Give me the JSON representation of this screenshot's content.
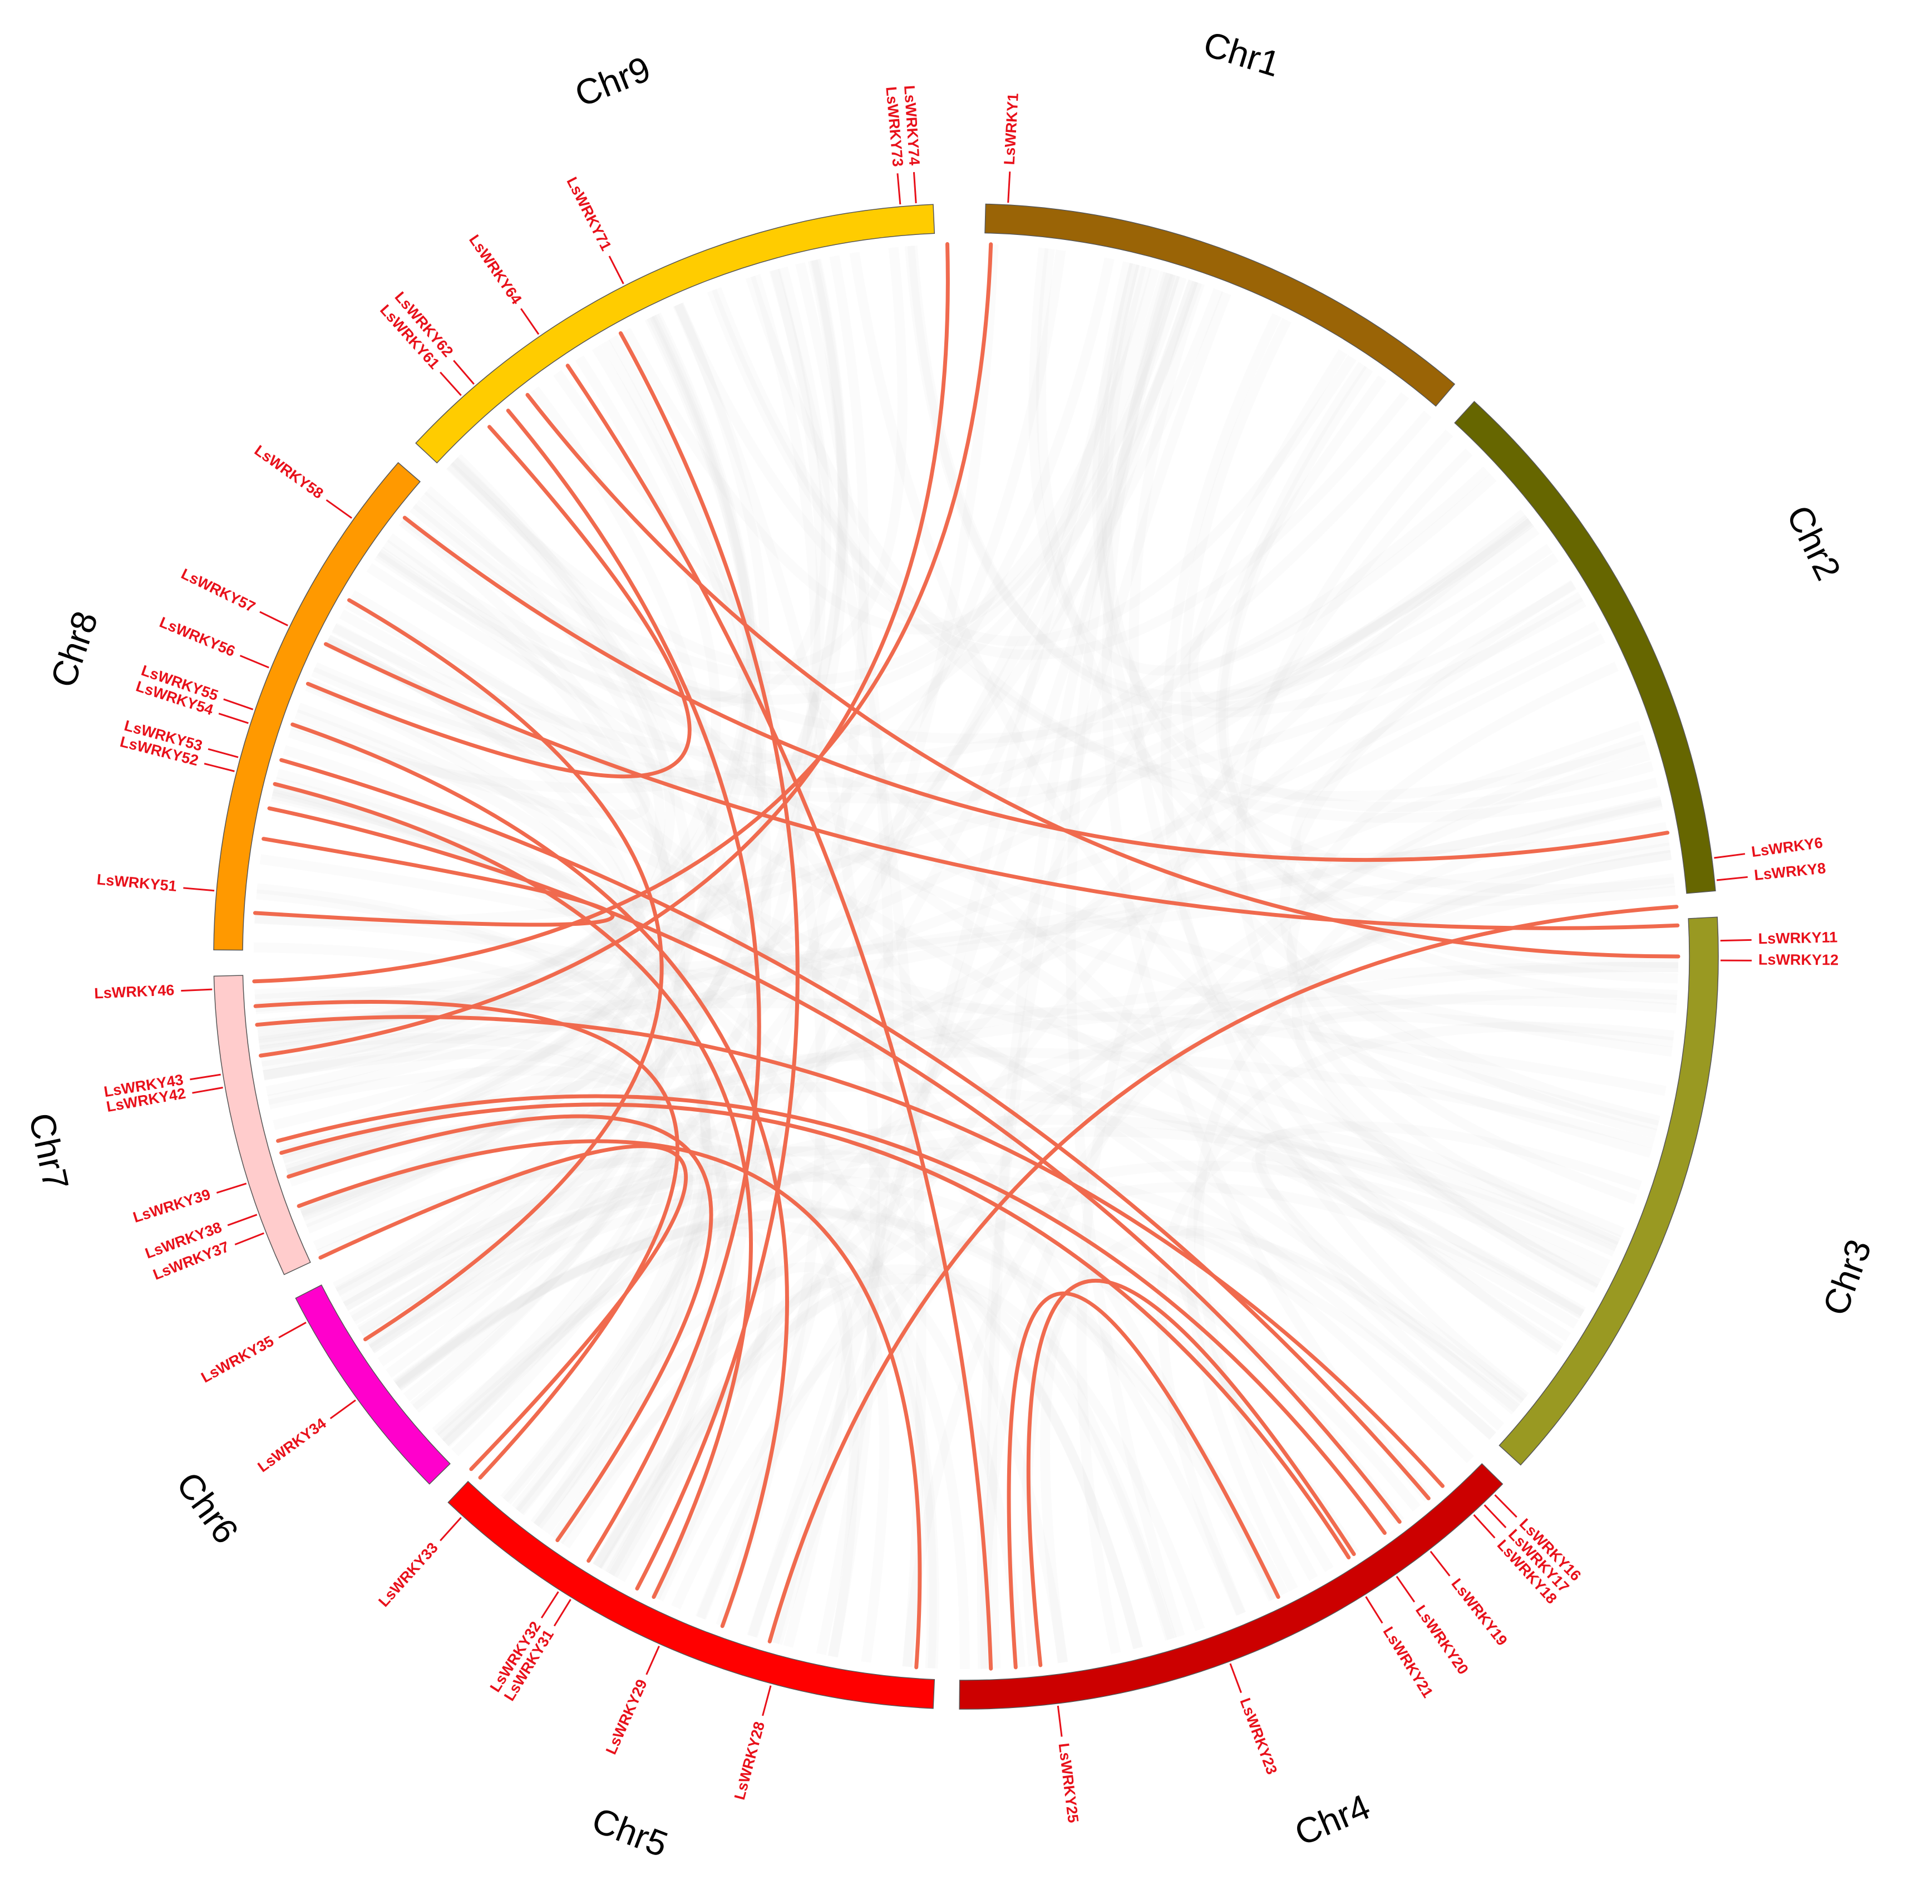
{
  "diagram": {
    "type": "circos",
    "link_color": "#f06a4e",
    "background_link_color": "#d9d9d9",
    "label_color": "#e8101a"
  },
  "chromosomes": [
    {
      "id": "Chr1",
      "label": "Chr1",
      "color": "#9a6406"
    },
    {
      "id": "Chr2",
      "label": "Chr2",
      "color": "#666600"
    },
    {
      "id": "Chr3",
      "label": "Chr3",
      "color": "#999922"
    },
    {
      "id": "Chr4",
      "label": "Chr4",
      "color": "#cc0000"
    },
    {
      "id": "Chr5",
      "label": "Chr5",
      "color": "#ff0000"
    },
    {
      "id": "Chr6",
      "label": "Chr6",
      "color": "#ff00cc"
    },
    {
      "id": "Chr7",
      "label": "Chr7",
      "color": "#ffcccc"
    },
    {
      "id": "Chr8",
      "label": "Chr8",
      "color": "#ff9900"
    },
    {
      "id": "Chr9",
      "label": "Chr9",
      "color": "#ffcc00"
    }
  ],
  "genes": [
    {
      "name": "LsWRKY1",
      "chr": "Chr1"
    },
    {
      "name": "LsWRKY6",
      "chr": "Chr2"
    },
    {
      "name": "LsWRKY8",
      "chr": "Chr2"
    },
    {
      "name": "LsWRKY11",
      "chr": "Chr3"
    },
    {
      "name": "LsWRKY12",
      "chr": "Chr3"
    },
    {
      "name": "LsWRKY16",
      "chr": "Chr4"
    },
    {
      "name": "LsWRKY17",
      "chr": "Chr4"
    },
    {
      "name": "LsWRKY18",
      "chr": "Chr4"
    },
    {
      "name": "LsWRKY19",
      "chr": "Chr4"
    },
    {
      "name": "LsWRKY20",
      "chr": "Chr4"
    },
    {
      "name": "LsWRKY21",
      "chr": "Chr4"
    },
    {
      "name": "LsWRKY23",
      "chr": "Chr4"
    },
    {
      "name": "LsWRKY25",
      "chr": "Chr4"
    },
    {
      "name": "LsWRKY28",
      "chr": "Chr5"
    },
    {
      "name": "LsWRKY29",
      "chr": "Chr5"
    },
    {
      "name": "LsWRKY31",
      "chr": "Chr5"
    },
    {
      "name": "LsWRKY32",
      "chr": "Chr5"
    },
    {
      "name": "LsWRKY33",
      "chr": "Chr5"
    },
    {
      "name": "LsWRKY34",
      "chr": "Chr6"
    },
    {
      "name": "LsWRKY35",
      "chr": "Chr6"
    },
    {
      "name": "LsWRKY37",
      "chr": "Chr7"
    },
    {
      "name": "LsWRKY38",
      "chr": "Chr7"
    },
    {
      "name": "LsWRKY39",
      "chr": "Chr7"
    },
    {
      "name": "LsWRKY42",
      "chr": "Chr7"
    },
    {
      "name": "LsWRKY43",
      "chr": "Chr7"
    },
    {
      "name": "LsWRKY46",
      "chr": "Chr7"
    },
    {
      "name": "LsWRKY51",
      "chr": "Chr8"
    },
    {
      "name": "LsWRKY52",
      "chr": "Chr8"
    },
    {
      "name": "LsWRKY53",
      "chr": "Chr8"
    },
    {
      "name": "LsWRKY54",
      "chr": "Chr8"
    },
    {
      "name": "LsWRKY55",
      "chr": "Chr8"
    },
    {
      "name": "LsWRKY56",
      "chr": "Chr8"
    },
    {
      "name": "LsWRKY57",
      "chr": "Chr8"
    },
    {
      "name": "LsWRKY58",
      "chr": "Chr8"
    },
    {
      "name": "LsWRKY61",
      "chr": "Chr9"
    },
    {
      "name": "LsWRKY62",
      "chr": "Chr9"
    },
    {
      "name": "LsWRKY64",
      "chr": "Chr9"
    },
    {
      "name": "LsWRKY71",
      "chr": "Chr9"
    },
    {
      "name": "LsWRKY73",
      "chr": "Chr9"
    },
    {
      "name": "LsWRKY74",
      "chr": "Chr9"
    }
  ]
}
